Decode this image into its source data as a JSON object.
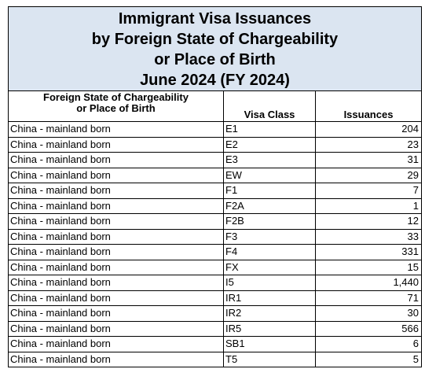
{
  "title": {
    "line1": "Immigrant Visa Issuances",
    "line2": "by Foreign State of Chargeability",
    "line3": "or Place of Birth",
    "line4": "June 2024 (FY 2024)"
  },
  "columns": {
    "state_line1": "Foreign State of Chargeability",
    "state_line2": "or Place of Birth",
    "visa_class": "Visa Class",
    "issuances": "Issuances"
  },
  "rows": [
    {
      "state": "China - mainland born",
      "visa_class": "E1",
      "issuances": "204"
    },
    {
      "state": "China - mainland born",
      "visa_class": "E2",
      "issuances": "23"
    },
    {
      "state": "China - mainland born",
      "visa_class": "E3",
      "issuances": "31"
    },
    {
      "state": "China - mainland born",
      "visa_class": "EW",
      "issuances": "29"
    },
    {
      "state": "China - mainland born",
      "visa_class": "F1",
      "issuances": "7"
    },
    {
      "state": "China - mainland born",
      "visa_class": "F2A",
      "issuances": "1"
    },
    {
      "state": "China - mainland born",
      "visa_class": "F2B",
      "issuances": "12"
    },
    {
      "state": "China - mainland born",
      "visa_class": "F3",
      "issuances": "33"
    },
    {
      "state": "China - mainland born",
      "visa_class": "F4",
      "issuances": "331"
    },
    {
      "state": "China - mainland born",
      "visa_class": "FX",
      "issuances": "15"
    },
    {
      "state": "China - mainland born",
      "visa_class": "I5",
      "issuances": "1,440"
    },
    {
      "state": "China - mainland born",
      "visa_class": "IR1",
      "issuances": "71"
    },
    {
      "state": "China - mainland born",
      "visa_class": "IR2",
      "issuances": "30"
    },
    {
      "state": "China - mainland born",
      "visa_class": "IR5",
      "issuances": "566"
    },
    {
      "state": "China - mainland born",
      "visa_class": "SB1",
      "issuances": "6"
    },
    {
      "state": "China - mainland born",
      "visa_class": "T5",
      "issuances": "5"
    }
  ],
  "colors": {
    "title_background": "#dbe5f1",
    "grid": "#000000"
  }
}
